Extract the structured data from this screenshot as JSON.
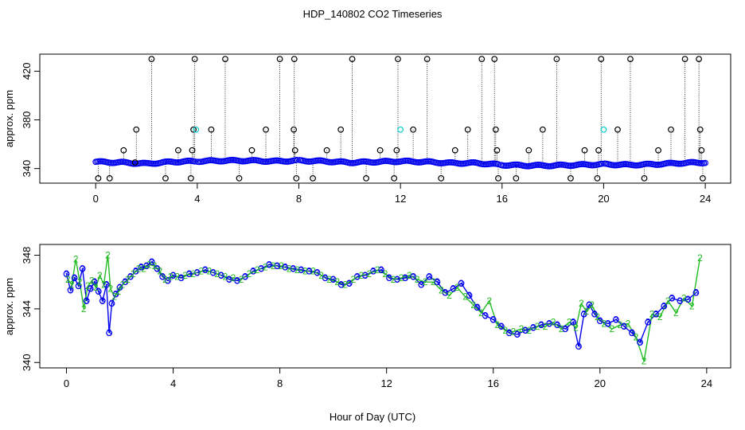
{
  "title": "HDP_140802  CO2 Timeseries",
  "xlabel": "Hour of Day (UTC)",
  "colors": {
    "blue": "#0000ee",
    "cyan": "#00cccc",
    "green": "#22bb22",
    "black": "#000000"
  },
  "chart_data": [
    {
      "type": "scatter",
      "ylabel": "approx. ppm",
      "xlim": [
        -2.2,
        25.0
      ],
      "ylim": [
        328,
        434
      ],
      "xticks": [
        0,
        4,
        8,
        12,
        16,
        20,
        24
      ],
      "yticks": [
        340,
        380,
        420
      ],
      "baseline_anchor_hours": [
        0,
        1,
        2,
        3,
        4,
        5,
        6,
        7,
        8,
        9,
        10,
        11,
        12,
        13,
        14,
        15,
        16,
        17,
        18,
        19,
        20,
        21,
        22,
        23,
        24
      ],
      "baseline_anchor_ppm": [
        345.5,
        345,
        344,
        345.5,
        346,
        346.5,
        346.5,
        346,
        346.5,
        346,
        345,
        345.5,
        346,
        345.5,
        344.5,
        344.5,
        343,
        342.5,
        342.5,
        343,
        343.5,
        343,
        343.5,
        344.5,
        345
      ],
      "spikes": [
        {
          "x": 0.1,
          "y": 332
        },
        {
          "x": 0.55,
          "y": 332
        },
        {
          "x": 1.1,
          "y": 355
        },
        {
          "x": 1.55,
          "y": 345
        },
        {
          "x": 1.6,
          "y": 372
        },
        {
          "x": 2.2,
          "y": 430
        },
        {
          "x": 2.75,
          "y": 332
        },
        {
          "x": 3.25,
          "y": 355
        },
        {
          "x": 3.75,
          "y": 332
        },
        {
          "x": 3.8,
          "y": 355
        },
        {
          "x": 3.85,
          "y": 372
        },
        {
          "x": 3.9,
          "y": 430
        },
        {
          "x": 4.55,
          "y": 372
        },
        {
          "x": 5.1,
          "y": 430
        },
        {
          "x": 5.65,
          "y": 332
        },
        {
          "x": 6.15,
          "y": 355
        },
        {
          "x": 6.7,
          "y": 372
        },
        {
          "x": 7.25,
          "y": 430
        },
        {
          "x": 7.8,
          "y": 372
        },
        {
          "x": 7.82,
          "y": 430
        },
        {
          "x": 7.85,
          "y": 355
        },
        {
          "x": 7.9,
          "y": 332
        },
        {
          "x": 8.55,
          "y": 332
        },
        {
          "x": 9.1,
          "y": 355
        },
        {
          "x": 9.65,
          "y": 372
        },
        {
          "x": 10.1,
          "y": 430
        },
        {
          "x": 10.65,
          "y": 332
        },
        {
          "x": 11.2,
          "y": 355
        },
        {
          "x": 11.75,
          "y": 332
        },
        {
          "x": 11.85,
          "y": 355
        },
        {
          "x": 11.9,
          "y": 430
        },
        {
          "x": 12.5,
          "y": 372
        },
        {
          "x": 13.05,
          "y": 430
        },
        {
          "x": 13.6,
          "y": 332
        },
        {
          "x": 14.15,
          "y": 355
        },
        {
          "x": 14.65,
          "y": 372
        },
        {
          "x": 15.2,
          "y": 430
        },
        {
          "x": 15.7,
          "y": 430
        },
        {
          "x": 15.75,
          "y": 372
        },
        {
          "x": 15.8,
          "y": 355
        },
        {
          "x": 15.85,
          "y": 332
        },
        {
          "x": 16.55,
          "y": 332
        },
        {
          "x": 17.05,
          "y": 355
        },
        {
          "x": 17.6,
          "y": 372
        },
        {
          "x": 18.15,
          "y": 430
        },
        {
          "x": 18.7,
          "y": 332
        },
        {
          "x": 19.25,
          "y": 355
        },
        {
          "x": 19.75,
          "y": 332
        },
        {
          "x": 19.8,
          "y": 355
        },
        {
          "x": 19.9,
          "y": 430
        },
        {
          "x": 20.55,
          "y": 372
        },
        {
          "x": 21.05,
          "y": 430
        },
        {
          "x": 21.6,
          "y": 332
        },
        {
          "x": 22.15,
          "y": 355
        },
        {
          "x": 22.65,
          "y": 372
        },
        {
          "x": 23.2,
          "y": 430
        },
        {
          "x": 23.75,
          "y": 430
        },
        {
          "x": 23.8,
          "y": 372
        },
        {
          "x": 23.85,
          "y": 355
        },
        {
          "x": 23.9,
          "y": 332
        }
      ],
      "cyan_markers": [
        {
          "x": 3.95,
          "y": 372
        },
        {
          "x": 12.0,
          "y": 372
        },
        {
          "x": 20.0,
          "y": 372
        }
      ],
      "gaps": [
        [
          3.95,
          4.0
        ],
        [
          7.95,
          8.0
        ],
        [
          11.95,
          12.0
        ],
        [
          15.9,
          15.95
        ],
        [
          19.95,
          20.0
        ]
      ]
    },
    {
      "type": "line",
      "ylabel": "approx. ppm",
      "xlim": [
        -1.0,
        24.9
      ],
      "ylim": [
        339.6,
        348.8
      ],
      "xticks": [
        0,
        4,
        8,
        12,
        16,
        20,
        24
      ],
      "yticks": [
        340,
        344,
        348
      ],
      "series": [
        {
          "name": "3",
          "color": "#0000ee",
          "x": [
            0,
            0.15,
            0.3,
            0.45,
            0.6,
            0.75,
            0.9,
            1.05,
            1.2,
            1.35,
            1.5,
            1.6,
            1.7,
            1.85,
            2.0,
            2.2,
            2.4,
            2.6,
            2.8,
            3.0,
            3.2,
            3.4,
            3.6,
            3.8,
            4.0,
            4.3,
            4.6,
            4.9,
            5.2,
            5.5,
            5.8,
            6.1,
            6.4,
            6.7,
            7.0,
            7.3,
            7.6,
            7.9,
            8.2,
            8.5,
            8.8,
            9.1,
            9.4,
            9.7,
            10.0,
            10.3,
            10.6,
            10.9,
            11.2,
            11.5,
            11.8,
            12.1,
            12.4,
            12.7,
            13.0,
            13.3,
            13.6,
            13.9,
            14.2,
            14.5,
            14.8,
            15.1,
            15.4,
            15.7,
            16.0,
            16.3,
            16.6,
            16.9,
            17.2,
            17.5,
            17.8,
            18.1,
            18.4,
            18.7,
            19.0,
            19.2,
            19.4,
            19.6,
            19.8,
            20.0,
            20.3,
            20.6,
            20.9,
            21.2,
            21.5,
            21.8,
            22.1,
            22.4,
            22.7,
            23.0,
            23.3,
            23.6
          ],
          "values": [
            346.6,
            345.4,
            346.3,
            345.7,
            347.0,
            344.6,
            345.5,
            346.0,
            345.3,
            344.6,
            345.8,
            342.2,
            344.4,
            345.1,
            345.6,
            346.0,
            346.4,
            346.8,
            347.1,
            347.2,
            347.5,
            347.0,
            346.4,
            346.1,
            346.5,
            346.3,
            346.6,
            346.7,
            346.9,
            346.7,
            346.5,
            346.2,
            346.1,
            346.4,
            346.8,
            347.0,
            347.3,
            347.2,
            347.1,
            347.0,
            346.9,
            346.8,
            346.7,
            346.3,
            346.2,
            345.8,
            345.9,
            346.4,
            346.5,
            346.8,
            346.9,
            346.3,
            346.2,
            346.3,
            346.4,
            345.8,
            346.4,
            346.0,
            345.2,
            345.5,
            345.9,
            345.0,
            344.1,
            343.5,
            343.2,
            342.7,
            342.2,
            342.1,
            342.4,
            342.6,
            342.8,
            342.9,
            342.8,
            342.5,
            343.0,
            341.2,
            343.6,
            344.3,
            343.6,
            343.1,
            342.9,
            343.2,
            342.7,
            342.2,
            341.5,
            343.0,
            343.6,
            344.2,
            344.8,
            344.6,
            344.7,
            345.2
          ]
        },
        {
          "name": "2",
          "color": "#22bb22",
          "x": [
            0.05,
            0.2,
            0.35,
            0.5,
            0.65,
            0.8,
            0.95,
            1.1,
            1.25,
            1.4,
            1.55,
            1.65,
            1.8,
            1.95,
            2.1,
            2.3,
            2.5,
            2.7,
            2.9,
            3.1,
            3.3,
            3.5,
            3.7,
            3.9,
            4.15,
            4.45,
            4.75,
            5.05,
            5.35,
            5.65,
            5.95,
            6.25,
            6.55,
            6.85,
            7.15,
            7.45,
            7.75,
            8.05,
            8.35,
            8.65,
            8.95,
            9.25,
            9.55,
            9.85,
            10.15,
            10.45,
            10.75,
            11.05,
            11.35,
            11.65,
            11.95,
            12.25,
            12.55,
            12.85,
            13.15,
            13.45,
            13.75,
            14.05,
            14.35,
            14.65,
            14.95,
            15.25,
            15.55,
            15.85,
            16.15,
            16.45,
            16.75,
            17.05,
            17.35,
            17.65,
            17.95,
            18.25,
            18.55,
            18.85,
            19.1,
            19.3,
            19.5,
            19.7,
            19.9,
            20.15,
            20.45,
            20.75,
            21.05,
            21.35,
            21.65,
            21.95,
            22.25,
            22.55,
            22.85,
            23.15,
            23.45,
            23.75
          ],
          "values": [
            346.2,
            345.8,
            347.7,
            346.0,
            344.0,
            345.7,
            346.1,
            345.6,
            346.5,
            345.8,
            348.0,
            345.5,
            344.9,
            345.3,
            345.8,
            346.2,
            346.6,
            347.0,
            347.0,
            347.3,
            347.2,
            346.8,
            346.2,
            346.4,
            346.4,
            346.5,
            346.6,
            346.8,
            346.8,
            346.6,
            346.4,
            346.3,
            346.2,
            346.6,
            346.9,
            347.1,
            347.2,
            347.2,
            347.0,
            346.9,
            346.8,
            346.8,
            346.5,
            346.2,
            346.0,
            345.8,
            346.2,
            346.5,
            346.6,
            346.9,
            346.6,
            346.2,
            346.3,
            346.5,
            346.2,
            346.0,
            346.0,
            345.4,
            345.0,
            345.6,
            344.9,
            344.3,
            343.7,
            344.6,
            342.8,
            342.4,
            342.3,
            342.5,
            342.4,
            342.7,
            342.7,
            343.0,
            342.5,
            343.0,
            342.6,
            344.4,
            343.8,
            344.3,
            343.4,
            342.9,
            342.5,
            342.8,
            342.9,
            341.9,
            340.1,
            343.6,
            343.4,
            344.6,
            343.7,
            344.8,
            344.2,
            347.8
          ]
        }
      ]
    }
  ]
}
